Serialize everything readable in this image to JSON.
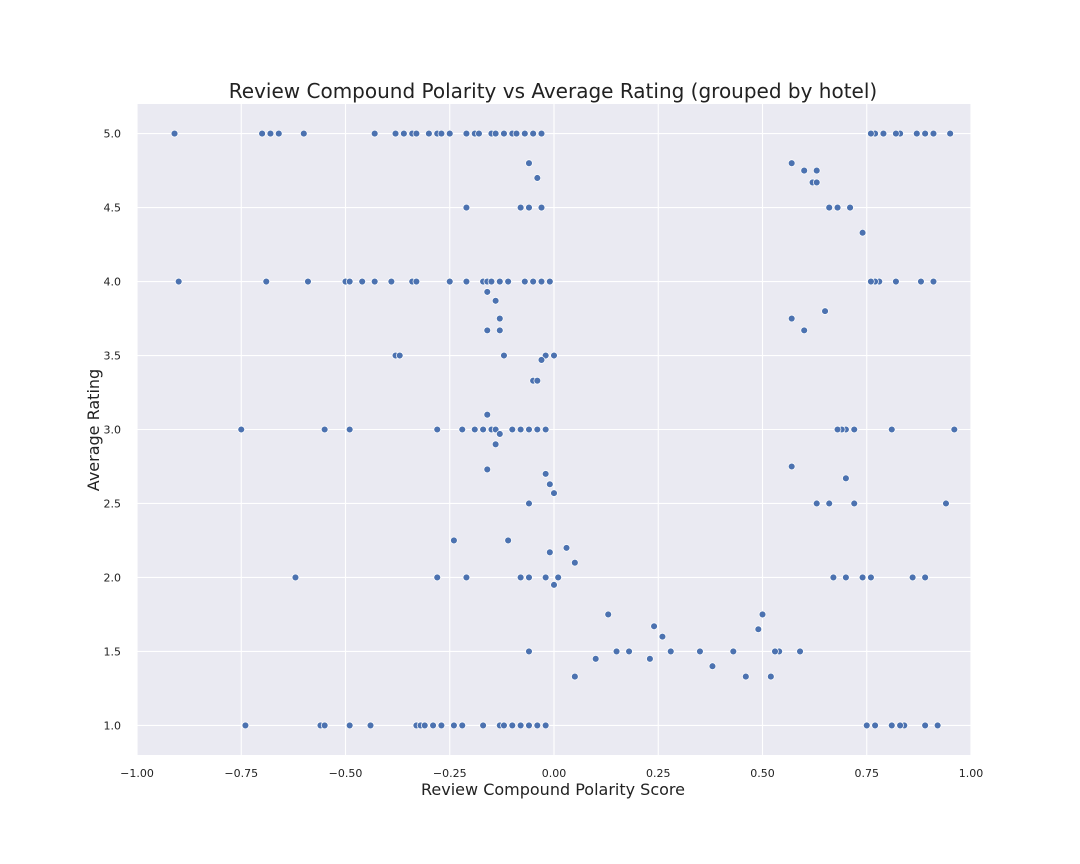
{
  "chart_data": {
    "type": "scatter",
    "title": "Review Compound Polarity vs Average Rating (grouped by hotel)",
    "xlabel": "Review Compound Polarity Score",
    "ylabel": "Average Rating",
    "xlim": [
      -1.0,
      1.0
    ],
    "ylim": [
      0.8,
      5.2
    ],
    "xticks": [
      "-1.00",
      "-0.75",
      "-0.50",
      "-0.25",
      "0.00",
      "0.25",
      "0.50",
      "0.75",
      "1.00"
    ],
    "yticks": [
      "1.0",
      "1.5",
      "2.0",
      "2.5",
      "3.0",
      "3.5",
      "4.0",
      "4.5",
      "5.0"
    ],
    "grid": true,
    "point_color": "#4c72b0",
    "plot_background": "#eaeaf2",
    "series": [
      {
        "points": [
          [
            -0.91,
            5.0
          ],
          [
            -0.7,
            5.0
          ],
          [
            -0.68,
            5.0
          ],
          [
            -0.66,
            5.0
          ],
          [
            -0.6,
            5.0
          ],
          [
            -0.43,
            5.0
          ],
          [
            -0.38,
            5.0
          ],
          [
            -0.36,
            5.0
          ],
          [
            -0.34,
            5.0
          ],
          [
            -0.33,
            5.0
          ],
          [
            -0.3,
            5.0
          ],
          [
            -0.28,
            5.0
          ],
          [
            -0.27,
            5.0
          ],
          [
            -0.25,
            5.0
          ],
          [
            -0.21,
            5.0
          ],
          [
            -0.19,
            5.0
          ],
          [
            -0.18,
            5.0
          ],
          [
            -0.15,
            5.0
          ],
          [
            -0.14,
            5.0
          ],
          [
            -0.12,
            5.0
          ],
          [
            -0.1,
            5.0
          ],
          [
            -0.09,
            5.0
          ],
          [
            -0.07,
            5.0
          ],
          [
            -0.05,
            5.0
          ],
          [
            -0.03,
            5.0
          ],
          [
            0.95,
            5.0
          ],
          [
            0.91,
            5.0
          ],
          [
            0.89,
            5.0
          ],
          [
            0.87,
            5.0
          ],
          [
            0.83,
            5.0
          ],
          [
            0.82,
            5.0
          ],
          [
            0.79,
            5.0
          ],
          [
            0.77,
            5.0
          ],
          [
            0.76,
            5.0
          ],
          [
            -0.9,
            4.0
          ],
          [
            -0.69,
            4.0
          ],
          [
            -0.59,
            4.0
          ],
          [
            -0.5,
            4.0
          ],
          [
            -0.49,
            4.0
          ],
          [
            -0.46,
            4.0
          ],
          [
            -0.43,
            4.0
          ],
          [
            -0.39,
            4.0
          ],
          [
            -0.34,
            4.0
          ],
          [
            -0.33,
            4.0
          ],
          [
            -0.25,
            4.0
          ],
          [
            -0.21,
            4.0
          ],
          [
            -0.17,
            4.0
          ],
          [
            -0.16,
            4.0
          ],
          [
            -0.15,
            4.0
          ],
          [
            -0.13,
            4.0
          ],
          [
            -0.11,
            4.0
          ],
          [
            -0.07,
            4.0
          ],
          [
            -0.05,
            4.0
          ],
          [
            -0.03,
            4.0
          ],
          [
            -0.01,
            4.0
          ],
          [
            0.91,
            4.0
          ],
          [
            0.88,
            4.0
          ],
          [
            0.82,
            4.0
          ],
          [
            0.78,
            4.0
          ],
          [
            0.77,
            4.0
          ],
          [
            0.76,
            4.0
          ],
          [
            -0.75,
            3.0
          ],
          [
            -0.55,
            3.0
          ],
          [
            -0.49,
            3.0
          ],
          [
            -0.28,
            3.0
          ],
          [
            -0.22,
            3.0
          ],
          [
            -0.19,
            3.0
          ],
          [
            -0.17,
            3.0
          ],
          [
            -0.15,
            3.0
          ],
          [
            -0.14,
            3.0
          ],
          [
            -0.1,
            3.0
          ],
          [
            -0.08,
            3.0
          ],
          [
            -0.06,
            3.0
          ],
          [
            -0.04,
            3.0
          ],
          [
            -0.02,
            3.0
          ],
          [
            0.96,
            3.0
          ],
          [
            0.81,
            3.0
          ],
          [
            0.72,
            3.0
          ],
          [
            0.7,
            3.0
          ],
          [
            0.69,
            3.0
          ],
          [
            0.68,
            3.0
          ],
          [
            -0.62,
            2.0
          ],
          [
            -0.28,
            2.0
          ],
          [
            -0.21,
            2.0
          ],
          [
            -0.08,
            2.0
          ],
          [
            -0.06,
            2.0
          ],
          [
            -0.02,
            2.0
          ],
          [
            0.01,
            2.0
          ],
          [
            0.89,
            2.0
          ],
          [
            0.86,
            2.0
          ],
          [
            0.76,
            2.0
          ],
          [
            0.74,
            2.0
          ],
          [
            0.7,
            2.0
          ],
          [
            0.67,
            2.0
          ],
          [
            -0.74,
            1.0
          ],
          [
            -0.56,
            1.0
          ],
          [
            -0.55,
            1.0
          ],
          [
            -0.49,
            1.0
          ],
          [
            -0.44,
            1.0
          ],
          [
            -0.33,
            1.0
          ],
          [
            -0.32,
            1.0
          ],
          [
            -0.31,
            1.0
          ],
          [
            -0.29,
            1.0
          ],
          [
            -0.27,
            1.0
          ],
          [
            -0.24,
            1.0
          ],
          [
            -0.22,
            1.0
          ],
          [
            -0.17,
            1.0
          ],
          [
            -0.13,
            1.0
          ],
          [
            -0.12,
            1.0
          ],
          [
            -0.1,
            1.0
          ],
          [
            -0.08,
            1.0
          ],
          [
            -0.06,
            1.0
          ],
          [
            -0.04,
            1.0
          ],
          [
            -0.02,
            1.0
          ],
          [
            0.92,
            1.0
          ],
          [
            0.89,
            1.0
          ],
          [
            0.84,
            1.0
          ],
          [
            0.83,
            1.0
          ],
          [
            0.81,
            1.0
          ],
          [
            0.77,
            1.0
          ],
          [
            0.75,
            1.0
          ],
          [
            -0.21,
            4.5
          ],
          [
            -0.06,
            4.5
          ],
          [
            -0.08,
            4.5
          ],
          [
            -0.03,
            4.5
          ],
          [
            0.71,
            4.5
          ],
          [
            0.68,
            4.5
          ],
          [
            0.66,
            4.5
          ],
          [
            0.74,
            4.33
          ],
          [
            0.62,
            4.67
          ],
          [
            0.6,
            4.75
          ],
          [
            0.63,
            4.67
          ],
          [
            0.57,
            4.8
          ],
          [
            -0.06,
            4.8
          ],
          [
            -0.04,
            4.7
          ],
          [
            0.63,
            4.75
          ],
          [
            -0.38,
            3.5
          ],
          [
            -0.37,
            3.5
          ],
          [
            -0.12,
            3.5
          ],
          [
            -0.02,
            3.5
          ],
          [
            0.0,
            3.5
          ],
          [
            -0.13,
            3.75
          ],
          [
            -0.13,
            3.67
          ],
          [
            -0.14,
            3.87
          ],
          [
            -0.16,
            3.93
          ],
          [
            -0.16,
            3.67
          ],
          [
            -0.05,
            3.33
          ],
          [
            -0.04,
            3.33
          ],
          [
            -0.03,
            3.47
          ],
          [
            0.6,
            3.67
          ],
          [
            0.65,
            3.8
          ],
          [
            0.57,
            3.75
          ],
          [
            -0.16,
            3.1
          ],
          [
            -0.16,
            2.73
          ],
          [
            -0.14,
            2.9
          ],
          [
            -0.13,
            2.97
          ],
          [
            -0.06,
            2.5
          ],
          [
            -0.02,
            2.7
          ],
          [
            -0.01,
            2.63
          ],
          [
            0.0,
            2.57
          ],
          [
            0.7,
            2.67
          ],
          [
            0.66,
            2.5
          ],
          [
            0.72,
            2.5
          ],
          [
            0.94,
            2.5
          ],
          [
            0.57,
            2.75
          ],
          [
            0.63,
            2.5
          ],
          [
            -0.24,
            2.25
          ],
          [
            -0.11,
            2.25
          ],
          [
            -0.01,
            2.17
          ],
          [
            0.0,
            1.95
          ],
          [
            0.03,
            2.2
          ],
          [
            0.05,
            2.1
          ],
          [
            -0.06,
            1.5
          ],
          [
            0.05,
            1.33
          ],
          [
            0.1,
            1.45
          ],
          [
            0.13,
            1.75
          ],
          [
            0.15,
            1.5
          ],
          [
            0.18,
            1.5
          ],
          [
            0.59,
            1.5
          ],
          [
            0.54,
            1.5
          ],
          [
            0.52,
            1.33
          ],
          [
            0.46,
            1.33
          ],
          [
            0.49,
            1.65
          ],
          [
            0.5,
            1.75
          ],
          [
            0.53,
            1.5
          ],
          [
            0.38,
            1.4
          ],
          [
            0.43,
            1.5
          ],
          [
            0.28,
            1.5
          ],
          [
            0.23,
            1.45
          ],
          [
            0.24,
            1.67
          ],
          [
            0.26,
            1.6
          ],
          [
            0.35,
            1.5
          ]
        ]
      }
    ]
  }
}
